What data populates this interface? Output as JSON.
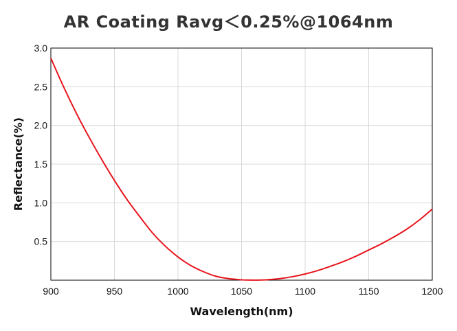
{
  "chart_data": {
    "type": "line",
    "title": "AR Coating Ravg＜0.25%@1064nm",
    "xlabel": "Wavelength(nm)",
    "ylabel": "Reflectance(%)",
    "xlim": [
      900,
      1200
    ],
    "ylim": [
      0,
      3.0
    ],
    "xticks": [
      900,
      950,
      1000,
      1050,
      1100,
      1150,
      1200
    ],
    "yticks": [
      0.5,
      1.0,
      1.5,
      2.0,
      2.5,
      3.0
    ],
    "xtick_labels": [
      "900",
      "950",
      "1000",
      "1050",
      "1100",
      "1150",
      "1200"
    ],
    "ytick_labels": [
      "0.5",
      "1.0",
      "1.5",
      "2.0",
      "2.5",
      "3.0"
    ],
    "grid": true,
    "series": [
      {
        "color": "#e8141b",
        "x": [
          900,
          910,
          920,
          930,
          940,
          950,
          960,
          970,
          980,
          990,
          1000,
          1010,
          1020,
          1030,
          1040,
          1050,
          1055,
          1060,
          1065,
          1070,
          1080,
          1090,
          1100,
          1110,
          1120,
          1130,
          1140,
          1150,
          1160,
          1170,
          1180,
          1190,
          1200
        ],
        "y": [
          2.87,
          2.5,
          2.16,
          1.85,
          1.56,
          1.29,
          1.04,
          0.82,
          0.61,
          0.44,
          0.3,
          0.19,
          0.11,
          0.05,
          0.02,
          0.005,
          0.002,
          0.001,
          0.002,
          0.006,
          0.02,
          0.045,
          0.08,
          0.125,
          0.18,
          0.24,
          0.31,
          0.39,
          0.47,
          0.56,
          0.66,
          0.78,
          0.92
        ]
      }
    ]
  }
}
